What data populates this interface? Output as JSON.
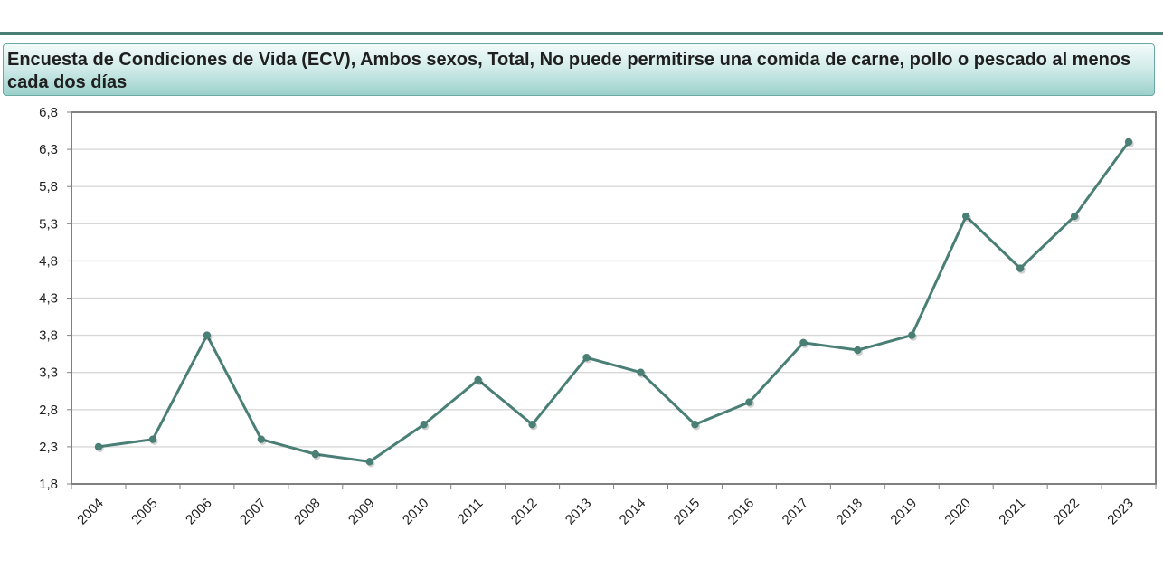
{
  "title": "Encuesta de Condiciones de Vida (ECV), Ambos sexos, Total, No puede permitirse una comida de carne, pollo o pescado al menos cada dos días",
  "colors": {
    "line": "#4a7f76",
    "header_rule": "#4a7f76",
    "title_bg": "#b5dedb",
    "grid": "#d8d8d8",
    "axis": "#808080"
  },
  "chart_data": {
    "type": "line",
    "title": "Encuesta de Condiciones de Vida (ECV), Ambos sexos, Total, No puede permitirse una comida de carne, pollo o pescado al menos cada dos días",
    "xlabel": "",
    "ylabel": "",
    "categories": [
      "2004",
      "2005",
      "2006",
      "2007",
      "2008",
      "2009",
      "2010",
      "2011",
      "2012",
      "2013",
      "2014",
      "2015",
      "2016",
      "2017",
      "2018",
      "2019",
      "2020",
      "2021",
      "2022",
      "2023"
    ],
    "series": [
      {
        "values": [
          2.3,
          2.4,
          3.8,
          2.4,
          2.2,
          2.1,
          2.6,
          3.2,
          2.6,
          3.5,
          3.3,
          2.6,
          2.9,
          3.7,
          3.6,
          3.8,
          5.4,
          4.7,
          5.4,
          6.4
        ]
      }
    ],
    "ylim": [
      1.8,
      6.8
    ],
    "yticks": [
      "1,8",
      "2,3",
      "2,8",
      "3,3",
      "3,8",
      "4,3",
      "4,8",
      "5,3",
      "5,8",
      "6,3",
      "6,8"
    ],
    "grid": true,
    "legend": "none",
    "x_tick_rotation": "-45deg"
  }
}
